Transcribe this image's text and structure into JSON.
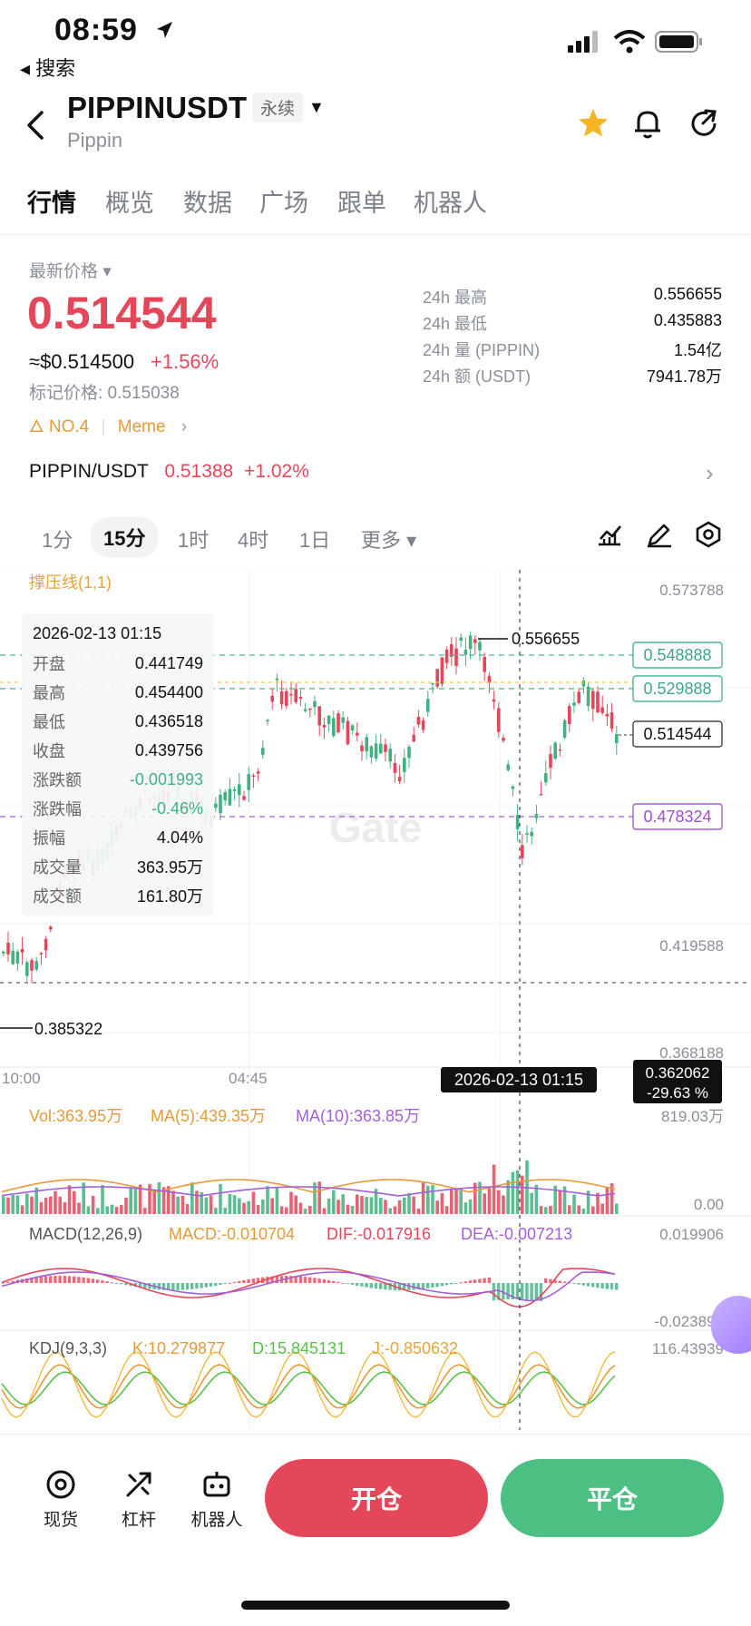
{
  "status": {
    "time": "08:59",
    "back_app": "◂ 搜索"
  },
  "header": {
    "symbol": "PIPPINUSDT",
    "badge": "永续",
    "subname": "Pippin",
    "icons": [
      "back-icon",
      "star-icon",
      "bell-icon",
      "share-icon"
    ],
    "star_color": "#f5b524"
  },
  "tabs": [
    "行情",
    "概览",
    "数据",
    "广场",
    "跟单",
    "机器人"
  ],
  "price": {
    "label": "最新价格",
    "last": "0.514544",
    "usd": "≈$0.514500",
    "change": "+1.56%",
    "mark": "标记价格: 0.515038",
    "rank": "NO.4",
    "tag": "Meme"
  },
  "stats": [
    {
      "label": "24h  最高",
      "value": "0.556655"
    },
    {
      "label": "24h  最低",
      "value": "0.435883"
    },
    {
      "label": "24h  量 (PIPPIN)",
      "value": "1.54亿"
    },
    {
      "label": "24h  额 (USDT)",
      "value": "7941.78万"
    }
  ],
  "spot_pair": {
    "name": "PIPPIN/USDT",
    "price": "0.51388",
    "change": "+1.02%"
  },
  "timeframes": [
    "1分",
    "15分",
    "1时",
    "4时",
    "1日",
    "更多"
  ],
  "active_timeframe": "15分",
  "chart": {
    "indicator": "撑压线(1,1)",
    "price_ticks": [
      "0.573788",
      "0.419588",
      "0.368188"
    ],
    "levels": {
      "resistance_1": "0.548888",
      "resistance_2": "0.529888",
      "current": "0.514544",
      "support": "0.478324"
    },
    "high_label": "0.556655",
    "low_label": "0.385322",
    "time_ticks": [
      "10:00",
      "04:45"
    ],
    "crosshair_time": "2026-02-13 01:15",
    "crosshair_price": "0.362062",
    "crosshair_pct": "-29.63 %",
    "watermark": "Gate",
    "ohlc_panel": {
      "date": "2026-02-13 01:15",
      "rows": [
        {
          "k": "开盘",
          "v": "0.441749"
        },
        {
          "k": "最高",
          "v": "0.454400"
        },
        {
          "k": "最低",
          "v": "0.436518"
        },
        {
          "k": "收盘",
          "v": "0.439756"
        },
        {
          "k": "涨跌额",
          "v": "-0.001993"
        },
        {
          "k": "涨跌幅",
          "v": "-0.46%"
        },
        {
          "k": "振幅",
          "v": "4.04%"
        },
        {
          "k": "成交量",
          "v": "363.95万"
        },
        {
          "k": "成交额",
          "v": "161.80万"
        }
      ]
    },
    "volume": {
      "vol": "Vol:363.95万",
      "ma5": "MA(5):439.35万",
      "ma10": "MA(10):363.85万",
      "max": "819.03万",
      "min": "0.00"
    },
    "macd": {
      "label": "MACD(12,26,9)",
      "macd": "MACD:-0.010704",
      "dif": "DIF:-0.017916",
      "dea": "DEA:-0.007213",
      "max": "0.019906",
      "min": "-0.023892"
    },
    "kdj": {
      "label": "KDJ(9,3,3)",
      "k": "K:10.279877",
      "d": "D:15.845131",
      "j": "J:-0.850632",
      "max": "116.43939"
    }
  },
  "bottom": {
    "tools": [
      "现货",
      "杠杆",
      "机器人"
    ],
    "open": "开仓",
    "close": "平仓"
  },
  "colors": {
    "up": "#e5475a",
    "down": "#3fb27f",
    "accent": "#f5b524"
  }
}
